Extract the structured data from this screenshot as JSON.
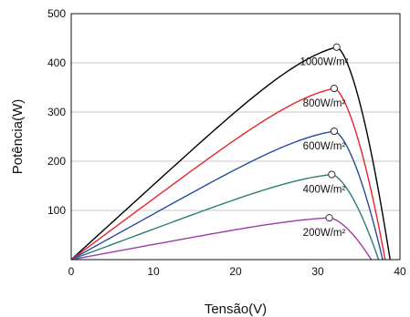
{
  "chart_data": {
    "type": "line",
    "title": "",
    "xlabel": "Tensão(V)",
    "ylabel": "Potência(W)",
    "xlim": [
      0,
      40
    ],
    "ylim": [
      0,
      500
    ],
    "xticks": [
      "0",
      "10",
      "20",
      "30",
      "40"
    ],
    "yticks": [
      "100",
      "200",
      "300",
      "400",
      "500"
    ],
    "grid": "horizontal",
    "series": [
      {
        "name": "1000W/m²",
        "color": "#000000",
        "mpp": [
          32.3,
          432
        ],
        "voc": 38.8
      },
      {
        "name": "800W/m²",
        "color": "#e8262b",
        "mpp": [
          32.0,
          348
        ],
        "voc": 38.2
      },
      {
        "name": "600W/m²",
        "color": "#274b9f",
        "mpp": [
          32.0,
          261
        ],
        "voc": 37.9
      },
      {
        "name": "400W/m²",
        "color": "#2e7c78",
        "mpp": [
          31.7,
          173
        ],
        "voc": 37.4
      },
      {
        "name": "200W/m²",
        "color": "#9b3fa6",
        "mpp": [
          31.4,
          85
        ],
        "voc": 36.5
      }
    ]
  }
}
